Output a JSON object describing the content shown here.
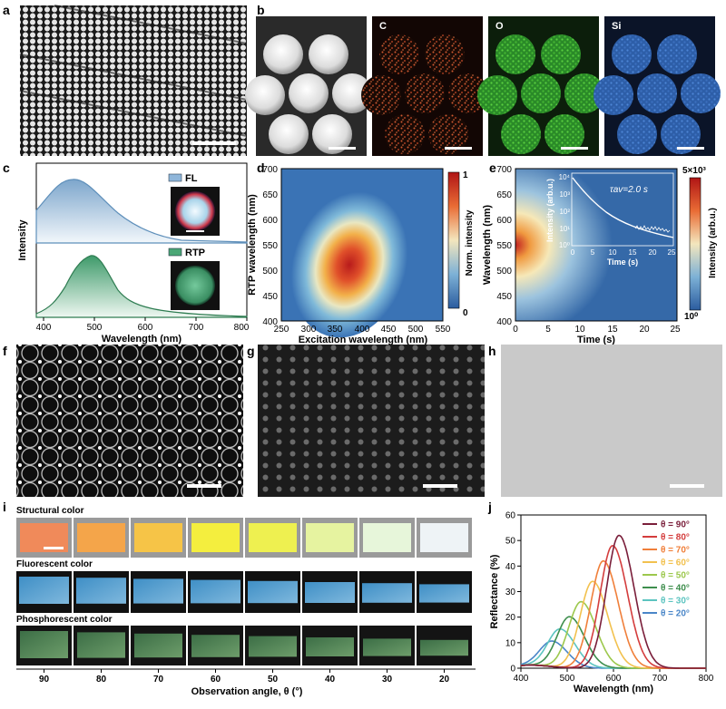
{
  "panels": {
    "a": "a",
    "b": "b",
    "c": "c",
    "d": "d",
    "e": "e",
    "f": "f",
    "g": "g",
    "h": "h",
    "i": "i",
    "j": "j"
  },
  "b_labels": [
    "C",
    "O",
    "Si"
  ],
  "panel_c": {
    "legend_fl": "FL",
    "legend_rtp": "RTP",
    "ylabel": "Intensity",
    "xlabel": "Wavelength (nm)",
    "xticks": [
      "400",
      "500",
      "600",
      "700",
      "800"
    ]
  },
  "panel_d": {
    "ylabel": "RTP wavelength (nm)",
    "xlabel": "Excitation wavelength (nm)",
    "yticks": [
      "700",
      "650",
      "600",
      "550",
      "500",
      "450",
      "400"
    ],
    "xticks": [
      "250",
      "300",
      "350",
      "400",
      "450",
      "500",
      "550"
    ],
    "cbar_label": "Norm. intensity",
    "cbar_max": "1",
    "cbar_min": "0"
  },
  "panel_e": {
    "ylabel": "Wavelength (nm)",
    "xlabel": "Time (s)",
    "yticks": [
      "700",
      "650",
      "600",
      "550",
      "500",
      "450",
      "400"
    ],
    "xticks": [
      "0",
      "5",
      "10",
      "15",
      "20",
      "25"
    ],
    "cbar_label": "Intensity (arb.u.)",
    "cbar_max": "5×10³",
    "cbar_min": "10⁰",
    "inset_ylabel": "Intensity (arb.u.)",
    "inset_xlabel": "Time (s)",
    "inset_yticks": [
      "10⁴",
      "10³",
      "10²",
      "10¹",
      "10⁰"
    ],
    "inset_xticks": [
      "0",
      "5",
      "10",
      "15",
      "20",
      "25"
    ],
    "inset_annotation": "τav=2.0 s"
  },
  "panel_i": {
    "row1_title": "Structural color",
    "row2_title": "Fluorescent color",
    "row3_title": "Phosphorescent color",
    "angles": [
      "90",
      "80",
      "70",
      "60",
      "50",
      "40",
      "30",
      "20"
    ],
    "xlabel": "Observation angle, θ (°)",
    "structural_colors": [
      "#f08a5a",
      "#f4a54a",
      "#f6c447",
      "#f4ee3e",
      "#eef050",
      "#e6f3a0",
      "#e7f6da",
      "#eef3f6"
    ]
  },
  "chart_data": {
    "type": "line",
    "xlabel": "Wavelength (nm)",
    "ylabel": "Reflectance (%)",
    "xlim": [
      400,
      800
    ],
    "ylim": [
      0,
      60
    ],
    "xticks": [
      400,
      500,
      600,
      700,
      800
    ],
    "yticks": [
      0,
      10,
      20,
      30,
      40,
      50,
      60
    ],
    "legend_position": "top-right",
    "series": [
      {
        "name": "θ = 90°",
        "peak_x": 612,
        "peak_y": 52,
        "color": "#7a1e3a"
      },
      {
        "name": "θ = 80°",
        "peak_x": 598,
        "peak_y": 48,
        "color": "#d43d3d"
      },
      {
        "name": "θ = 70°",
        "peak_x": 578,
        "peak_y": 42,
        "color": "#f07f3a"
      },
      {
        "name": "θ = 60°",
        "peak_x": 555,
        "peak_y": 34,
        "color": "#f2c14e"
      },
      {
        "name": "θ = 50°",
        "peak_x": 530,
        "peak_y": 26,
        "color": "#9cc84c"
      },
      {
        "name": "θ = 40°",
        "peak_x": 505,
        "peak_y": 20,
        "color": "#3e8e4d"
      },
      {
        "name": "θ = 30°",
        "peak_x": 485,
        "peak_y": 15,
        "color": "#5cc4c0"
      },
      {
        "name": "θ = 20°",
        "peak_x": 468,
        "peak_y": 10,
        "color": "#4a86c8"
      }
    ]
  }
}
